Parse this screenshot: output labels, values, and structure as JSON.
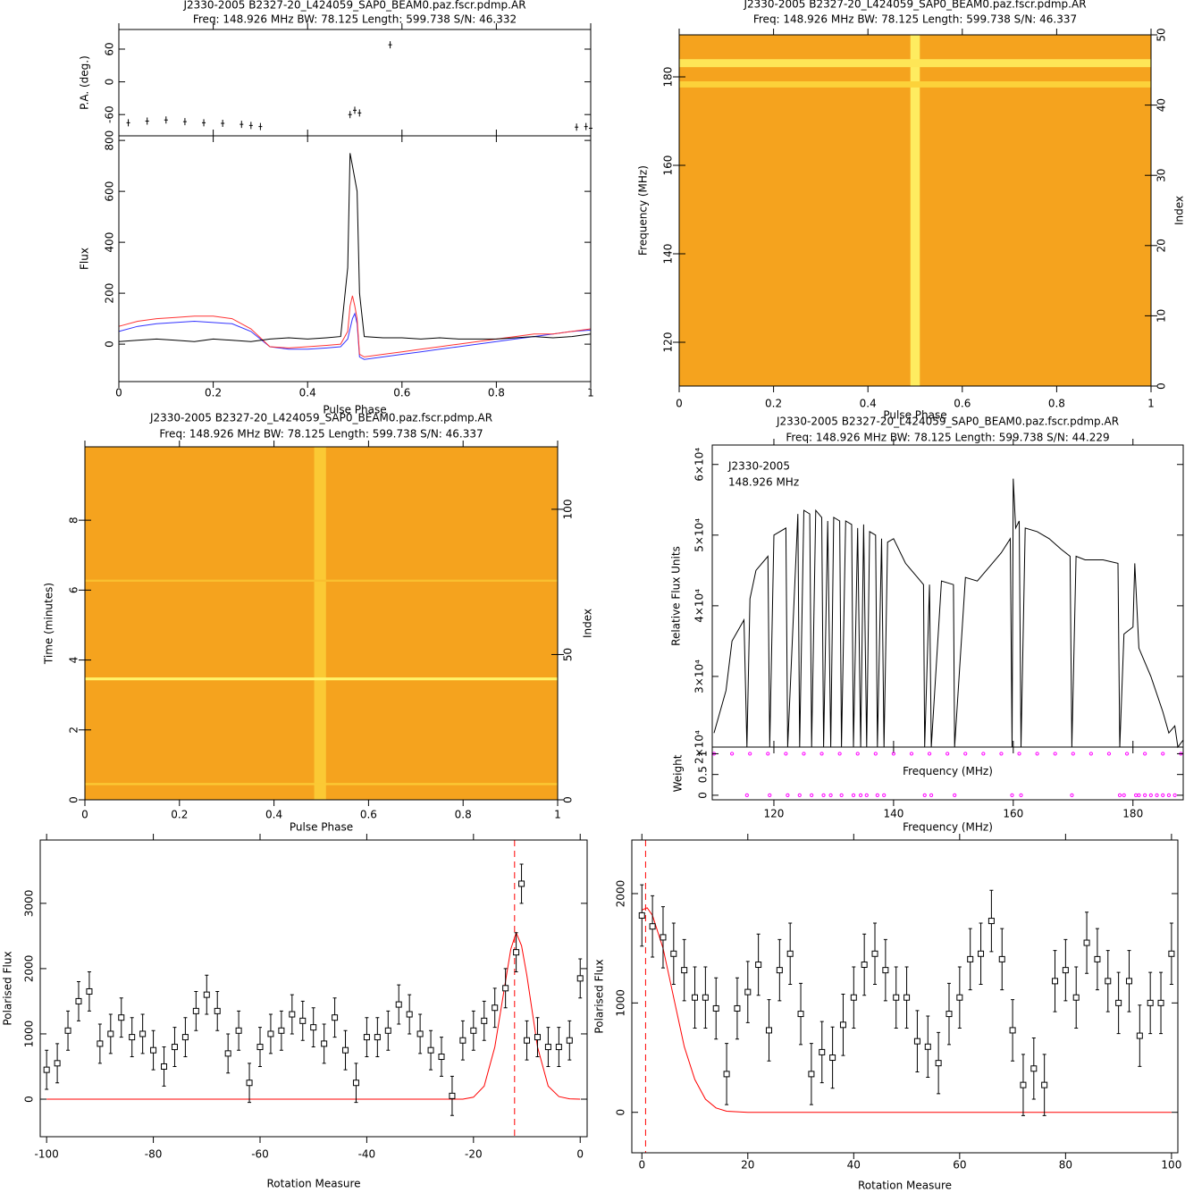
{
  "chart_data": [
    {
      "type": "pulse_profile",
      "title": "J2330-2005 B2327-20_L424059_SAP0_BEAM0.paz.fscr.pdmp.AR",
      "subtitle": "Freq: 148.926 MHz BW: 78.125 Length: 599.738 S/N: 46.332",
      "xlabel": "Pulse Phase",
      "xlim": [
        0,
        1
      ],
      "xticks": [
        0,
        0.2,
        0.4,
        0.6,
        0.8,
        1
      ],
      "pa": {
        "ylabel": "P.A. (deg.)",
        "ylim": [
          -99,
          96
        ],
        "yticks": [
          -60,
          0,
          60
        ],
        "color": "#000000",
        "x": [
          0.02,
          0.06,
          0.1,
          0.14,
          0.18,
          0.22,
          0.26,
          0.28,
          0.3,
          0.49,
          0.5,
          0.51,
          0.575,
          0.97,
          0.99,
          1
        ],
        "values": [
          -75,
          -72,
          -70,
          -73,
          -75,
          -76,
          -78,
          -80,
          -82,
          -60,
          -52,
          -57,
          68,
          -83,
          -82,
          -85
        ]
      },
      "flux": {
        "ylabel": "Flux",
        "ylim": [
          -147,
          818
        ],
        "yticks": [
          0,
          200,
          400,
          600,
          800
        ],
        "x": [
          0,
          0.04,
          0.08,
          0.12,
          0.16,
          0.2,
          0.24,
          0.28,
          0.32,
          0.36,
          0.4,
          0.44,
          0.47,
          0.485,
          0.49,
          0.495,
          0.5,
          0.505,
          0.51,
          0.52,
          0.56,
          0.6,
          0.64,
          0.68,
          0.72,
          0.76,
          0.8,
          0.84,
          0.88,
          0.92,
          0.96,
          1
        ],
        "series": [
          {
            "color": "#3333ff",
            "values": [
              50,
              70,
              80,
              85,
              90,
              85,
              80,
              50,
              -10,
              -20,
              -20,
              -15,
              -10,
              20,
              60,
              100,
              120,
              80,
              -50,
              -60,
              -50,
              -40,
              -30,
              -20,
              -10,
              0,
              10,
              20,
              30,
              40,
              50,
              55
            ]
          },
          {
            "color": "#ff3333",
            "values": [
              70,
              90,
              100,
              105,
              110,
              110,
              100,
              60,
              -10,
              -15,
              -10,
              -5,
              0,
              50,
              150,
              190,
              150,
              100,
              -40,
              -50,
              -40,
              -30,
              -20,
              -10,
              0,
              10,
              20,
              30,
              40,
              40,
              50,
              60
            ]
          },
          {
            "color": "#000000",
            "values": [
              10,
              15,
              20,
              15,
              10,
              20,
              15,
              10,
              20,
              25,
              20,
              25,
              30,
              300,
              750,
              700,
              650,
              600,
              200,
              30,
              25,
              25,
              20,
              25,
              20,
              20,
              20,
              25,
              30,
              25,
              30,
              40
            ]
          }
        ]
      }
    },
    {
      "type": "heatmap",
      "title": "J2330-2005 B2327-20_L424059_SAP0_BEAM0.paz.fscr.pdmp.AR",
      "subtitle": "Freq: 148.926 MHz BW: 78.125 Length: 599.738 S/N: 46.337",
      "xlabel": "Pulse Phase",
      "ylabel": "Frequency (MHz)",
      "y2label": "Index",
      "xlim": [
        0,
        1
      ],
      "xticks": [
        0,
        0.2,
        0.4,
        0.6,
        0.8,
        1
      ],
      "ylim": [
        110.1,
        189.5
      ],
      "yticks": [
        120,
        140,
        160,
        180
      ],
      "y2lim": [
        0,
        50
      ],
      "y2ticks": [
        0,
        10,
        20,
        30,
        40,
        50
      ],
      "background": 0.35,
      "columns": [
        {
          "from": 0.49,
          "to": 0.51,
          "value": 0.8
        }
      ],
      "rows": [
        {
          "from": 182.2,
          "to": 184.0,
          "value": 0.75
        },
        {
          "from": 177.6,
          "to": 179.0,
          "value": 0.6
        }
      ]
    },
    {
      "type": "heatmap",
      "title": "J2330-2005 B2327-20_L424059_SAP0_BEAM0.paz.fscr.pdmp.AR",
      "subtitle": "Freq: 148.926 MHz BW: 78.125 Length: 599.738 S/N: 46.337",
      "xlabel": "Pulse Phase",
      "ylabel": "Time (minutes)",
      "y2label": "Index",
      "xlim": [
        0,
        1
      ],
      "xticks": [
        0,
        0.2,
        0.4,
        0.6,
        0.8,
        1
      ],
      "ylim": [
        0,
        10.1
      ],
      "yticks": [
        0,
        2,
        4,
        6,
        8
      ],
      "y2lim": [
        0,
        121.5
      ],
      "y2ticks": [
        0,
        50,
        100
      ],
      "background": 0.35,
      "columns": [
        {
          "from": 0.485,
          "to": 0.51,
          "value": 0.55
        }
      ],
      "rows": [
        {
          "from": 3.42,
          "to": 3.5,
          "value": 0.85
        },
        {
          "from": 6.24,
          "to": 6.3,
          "value": 0.5
        },
        {
          "from": 0.42,
          "to": 0.48,
          "value": 0.55
        }
      ]
    },
    {
      "type": "bandpass",
      "title": "J2330-2005 B2327-20_L424059_SAP0_BEAM0.paz.fscr.pdmp.AR",
      "subtitle": "Freq: 148.926 MHz BW: 78.125 Length: 599.738 S/N: 44.229",
      "annotations": [
        "J2330-2005",
        "148.926 MHz"
      ],
      "xlabel": "Frequency (MHz)",
      "ylabel": "Relative Flux Units",
      "xlim": [
        109.7,
        188.4
      ],
      "xticks": [
        120,
        140,
        160,
        180
      ],
      "ylim": [
        20000,
        62750
      ],
      "yticks": [
        {
          "value": 20000,
          "label": "2×10⁴"
        },
        {
          "value": 30000,
          "label": "3×10⁴"
        },
        {
          "value": 40000,
          "label": "4×10⁴"
        },
        {
          "value": 50000,
          "label": "5×10⁴"
        },
        {
          "value": 60000,
          "label": "6×10⁴"
        }
      ],
      "color": "#000000",
      "x": [
        110,
        112,
        113,
        115,
        115.5,
        116,
        117,
        119,
        119.3,
        120,
        122,
        122.3,
        124,
        124.3,
        125,
        126,
        126.3,
        127,
        128,
        128.3,
        129,
        129.5,
        130,
        131,
        131.3,
        132,
        133,
        133.3,
        134,
        134.5,
        135,
        135.5,
        136,
        137,
        137.3,
        138,
        138.4,
        139,
        140,
        142,
        144,
        145,
        145.2,
        146,
        146.3,
        148,
        150,
        150.2,
        152,
        154,
        156,
        158,
        159.5,
        159.8,
        160,
        160.4,
        161,
        161.3,
        162,
        164,
        166,
        168,
        169.5,
        169.8,
        170.5,
        172,
        175,
        177.5,
        177.8,
        178.5,
        180,
        180.3,
        181,
        183,
        185,
        186,
        187,
        187.5,
        188.4
      ],
      "values": [
        22000,
        28000,
        35000,
        38000,
        20000,
        41000,
        45000,
        47000,
        20000,
        50000,
        51000,
        20000,
        53000,
        20000,
        53500,
        53000,
        20000,
        53500,
        52500,
        20000,
        52000,
        20000,
        52500,
        52000,
        20000,
        52000,
        51500,
        20000,
        51000,
        20000,
        51500,
        20000,
        50500,
        50000,
        20000,
        49500,
        20000,
        49000,
        49500,
        46000,
        44000,
        43000,
        20000,
        43000,
        20000,
        43500,
        43000,
        20000,
        44000,
        43500,
        45500,
        47500,
        49500,
        20000,
        58000,
        51000,
        52000,
        20000,
        51000,
        50500,
        49500,
        48000,
        47000,
        20000,
        47000,
        46500,
        46500,
        46000,
        20000,
        36000,
        37000,
        46000,
        34000,
        30000,
        25000,
        22000,
        23000,
        20000,
        21000
      ],
      "weight": {
        "ylabel": "Weight",
        "xlabel": "Frequency (MHz)",
        "ylim": [
          -0.11,
          1.16
        ],
        "yticks": [
          0,
          0.5,
          1
        ],
        "color": "#ff00ff",
        "x": [
          110,
          113,
          116,
          119,
          122,
          125,
          128,
          131,
          134,
          137,
          140,
          143,
          146,
          149,
          152,
          155,
          158,
          161,
          164,
          167,
          170,
          173,
          176,
          179,
          182,
          185,
          188,
          115.5,
          119.3,
          122.3,
          124.3,
          126.3,
          128.3,
          129.5,
          131.3,
          133.3,
          134.5,
          135.5,
          137.3,
          138.4,
          145.2,
          146.3,
          150.2,
          159.8,
          161.3,
          169.8,
          177.8,
          178.5,
          180.5,
          181,
          182,
          183,
          184,
          185,
          186,
          187
        ],
        "values": [
          1,
          1,
          1,
          1,
          1,
          1,
          1,
          1,
          1,
          1,
          1,
          1,
          1,
          1,
          1,
          1,
          1,
          1,
          1,
          1,
          1,
          1,
          1,
          1,
          1,
          1,
          1,
          0,
          0,
          0,
          0,
          0,
          0,
          0,
          0,
          0,
          0,
          0,
          0,
          0,
          0,
          0,
          0,
          0,
          0,
          0,
          0,
          0,
          0,
          0,
          0,
          0,
          0,
          0,
          0,
          0
        ]
      }
    },
    {
      "type": "rm",
      "xlabel": "Rotation Measure",
      "ylabel": "Polarised Flux",
      "xlim": [
        -101.2,
        1.3
      ],
      "xticks": [
        -100,
        -80,
        -60,
        -40,
        -20,
        0
      ],
      "ylim": [
        -575,
        3970
      ],
      "yticks": [
        0,
        1000,
        2000,
        3000
      ],
      "color": "#000000",
      "error": 300,
      "x": [
        -100,
        -98,
        -96,
        -94,
        -92,
        -90,
        -88,
        -86,
        -84,
        -82,
        -80,
        -78,
        -76,
        -74,
        -72,
        -70,
        -68,
        -66,
        -64,
        -62,
        -60,
        -58,
        -56,
        -54,
        -52,
        -50,
        -48,
        -46,
        -44,
        -42,
        -40,
        -38,
        -36,
        -34,
        -32,
        -30,
        -28,
        -26,
        -24,
        -22,
        -20,
        -18,
        -16,
        -14,
        -12,
        -11,
        -10,
        -8,
        -6,
        -4,
        -2,
        0
      ],
      "values": [
        450,
        550,
        1050,
        1500,
        1650,
        850,
        1000,
        1250,
        950,
        1000,
        750,
        500,
        800,
        950,
        1350,
        1600,
        1350,
        700,
        1050,
        250,
        800,
        1000,
        1050,
        1300,
        1200,
        1100,
        850,
        1250,
        750,
        250,
        950,
        950,
        1050,
        1450,
        1300,
        1000,
        750,
        650,
        50,
        900,
        1050,
        1200,
        1400,
        1700,
        2250,
        3300,
        900,
        950,
        800,
        800,
        900,
        1850
      ],
      "fit": {
        "color": "#ff0000",
        "x": [
          -100,
          -22,
          -20,
          -18,
          -16,
          -14,
          -13,
          -12,
          -11,
          -10,
          -8,
          -6,
          -4,
          -2,
          0
        ],
        "values": [
          0,
          0,
          30,
          200,
          800,
          1800,
          2300,
          2550,
          2350,
          1900,
          800,
          200,
          40,
          5,
          0
        ]
      },
      "peak": -12.3
    },
    {
      "type": "rm",
      "xlabel": "Rotation Measure",
      "ylabel": "Polarised Flux",
      "xlim": [
        -1.9,
        101.2
      ],
      "xticks": [
        0,
        20,
        40,
        60,
        80,
        100
      ],
      "ylim": [
        -370,
        2490
      ],
      "yticks": [
        0,
        1000,
        2000
      ],
      "color": "#000000",
      "error": 280,
      "x": [
        0,
        2,
        4,
        6,
        8,
        10,
        12,
        14,
        16,
        18,
        20,
        22,
        24,
        26,
        28,
        30,
        32,
        34,
        36,
        38,
        40,
        42,
        44,
        46,
        48,
        50,
        52,
        54,
        56,
        58,
        60,
        62,
        64,
        66,
        68,
        70,
        72,
        74,
        76,
        78,
        80,
        82,
        84,
        86,
        88,
        90,
        92,
        94,
        96,
        98,
        100
      ],
      "values": [
        1800,
        1700,
        1600,
        1450,
        1300,
        1050,
        1050,
        950,
        350,
        950,
        1100,
        1350,
        750,
        1300,
        1450,
        900,
        350,
        550,
        500,
        800,
        1050,
        1350,
        1450,
        1300,
        1050,
        1050,
        650,
        600,
        450,
        900,
        1050,
        1400,
        1450,
        1750,
        1400,
        750,
        250,
        400,
        250,
        1200,
        1300,
        1050,
        1550,
        1400,
        1200,
        1000,
        1200,
        700,
        1000,
        1000,
        1450
      ],
      "fit": {
        "color": "#ff0000",
        "x": [
          0,
          1,
          2,
          4,
          6,
          8,
          10,
          12,
          14,
          16,
          20,
          100
        ],
        "values": [
          1850,
          1870,
          1800,
          1500,
          1050,
          600,
          300,
          120,
          40,
          10,
          0,
          0
        ]
      },
      "peak": 0.7
    }
  ]
}
